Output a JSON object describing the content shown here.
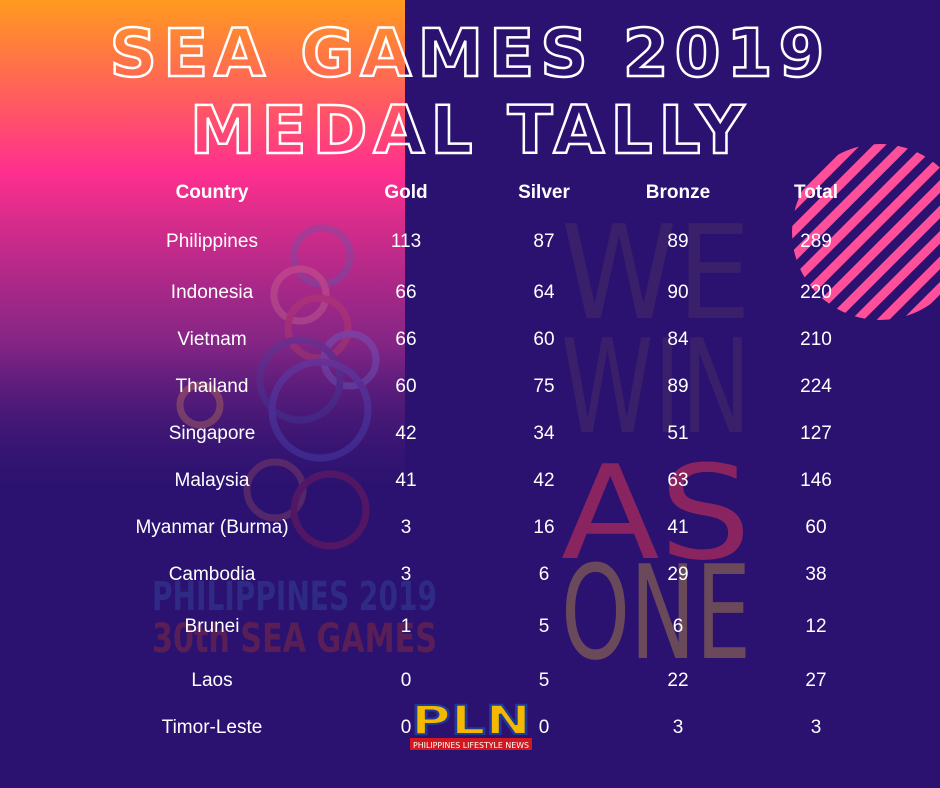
{
  "header": {
    "title": [
      "SEA GAMES 2019",
      "MEDAL TALLY"
    ]
  },
  "table": {
    "columns": [
      "Country",
      "Gold",
      "Silver",
      "Bronze",
      "Total"
    ],
    "rows": [
      [
        "Philippines",
        113,
        87,
        89,
        289
      ],
      [
        "Indonesia",
        66,
        64,
        90,
        220
      ],
      [
        "Vietnam",
        66,
        60,
        84,
        210
      ],
      [
        "Thailand",
        60,
        75,
        89,
        224
      ],
      [
        "Singapore",
        42,
        34,
        51,
        127
      ],
      [
        "Malaysia",
        41,
        42,
        63,
        146
      ],
      [
        "Myanmar (Burma)",
        3,
        16,
        41,
        60
      ],
      [
        "Cambodia",
        3,
        6,
        29,
        38
      ],
      [
        "Brunei",
        1,
        5,
        6,
        12
      ],
      [
        "Laos",
        0,
        5,
        22,
        27
      ],
      [
        "Timor-Leste",
        0,
        0,
        3,
        3
      ]
    ]
  },
  "watermark": {
    "slogan": [
      "WE",
      "WIN",
      "AS",
      "ONE"
    ],
    "event": [
      "PHILIPPINES 2019",
      "30th SEA GAMES"
    ]
  },
  "logo": {
    "mark": "PLN",
    "name": "PHILIPPINES LIFESTYLE NEWS"
  }
}
